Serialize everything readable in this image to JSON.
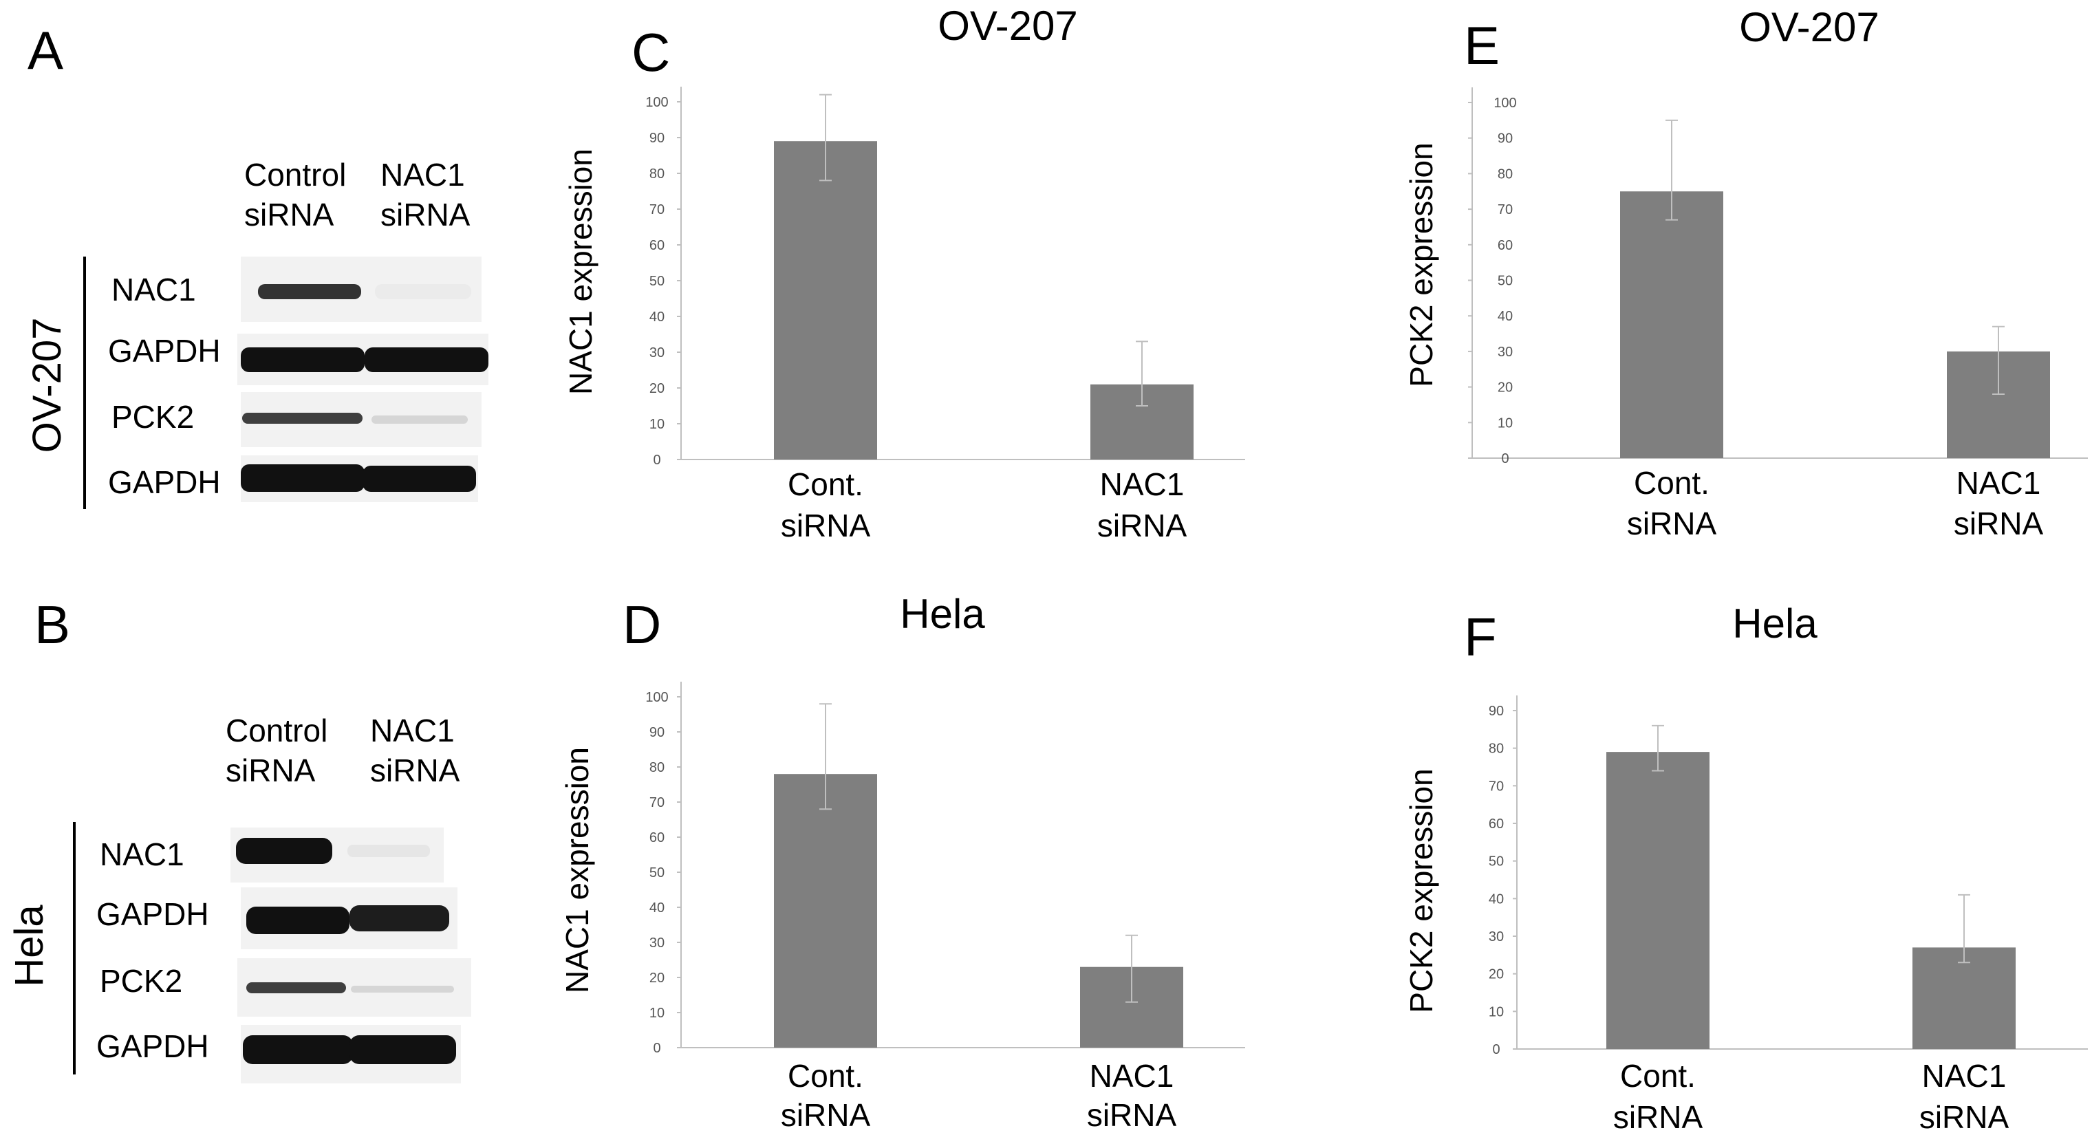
{
  "panels": {
    "A": "A",
    "B": "B",
    "C": "C",
    "D": "D",
    "E": "E",
    "F": "F"
  },
  "western_blots": [
    {
      "cell_line": "OV-207",
      "lanes": [
        {
          "line1": "Control",
          "line2": "siRNA"
        },
        {
          "line1": "NAC1",
          "line2": "siRNA"
        }
      ],
      "rows": [
        "NAC1",
        "GAPDH",
        "PCK2",
        "GAPDH"
      ],
      "band_intensity": [
        [
          0.85,
          0.03
        ],
        [
          1.0,
          1.0
        ],
        [
          0.8,
          0.12
        ],
        [
          1.0,
          1.0
        ]
      ]
    },
    {
      "cell_line": "Hela",
      "lanes": [
        {
          "line1": "Control",
          "line2": "siRNA"
        },
        {
          "line1": "NAC1",
          "line2": "siRNA"
        }
      ],
      "rows": [
        "NAC1",
        "GAPDH",
        "PCK2",
        "GAPDH"
      ],
      "band_intensity": [
        [
          1.0,
          0.05
        ],
        [
          1.0,
          0.95
        ],
        [
          0.8,
          0.12
        ],
        [
          1.0,
          1.0
        ]
      ]
    }
  ],
  "colors": {
    "bar": "#7f7f7f",
    "axis": "#bfbfbf",
    "band": "#111111",
    "blot_bg": "#f2f2f2"
  },
  "chart_data": [
    {
      "panel": "C",
      "type": "bar",
      "title": "OV-207",
      "ylabel": "NAC1 expression",
      "categories": [
        {
          "line1": "Cont.",
          "line2": "siRNA"
        },
        {
          "line1": "NAC1",
          "line2": "siRNA"
        }
      ],
      "values": [
        89,
        21
      ],
      "errors": [
        {
          "low": 78,
          "high": 102
        },
        {
          "low": 15,
          "high": 33
        }
      ],
      "ylim": [
        0,
        100
      ],
      "yticks": [
        0,
        10,
        20,
        30,
        40,
        50,
        60,
        70,
        80,
        90,
        100
      ],
      "grid": false
    },
    {
      "panel": "D",
      "type": "bar",
      "title": "Hela",
      "ylabel": "NAC1 expression",
      "categories": [
        {
          "line1": "Cont.",
          "line2": "siRNA"
        },
        {
          "line1": "NAC1",
          "line2": "siRNA"
        }
      ],
      "values": [
        78,
        23
      ],
      "errors": [
        {
          "low": 68,
          "high": 98
        },
        {
          "low": 13,
          "high": 32
        }
      ],
      "ylim": [
        0,
        100
      ],
      "yticks": [
        0,
        10,
        20,
        30,
        40,
        50,
        60,
        70,
        80,
        90,
        100
      ],
      "grid": false
    },
    {
      "panel": "E",
      "type": "bar",
      "title": "OV-207",
      "ylabel": "PCK2 expression",
      "categories": [
        {
          "line1": "Cont.",
          "line2": "siRNA"
        },
        {
          "line1": "NAC1",
          "line2": "siRNA"
        }
      ],
      "values": [
        75,
        30
      ],
      "errors": [
        {
          "low": 67,
          "high": 95
        },
        {
          "low": 18,
          "high": 37
        }
      ],
      "ylim": [
        0,
        100
      ],
      "yticks": [
        0,
        10,
        20,
        30,
        40,
        50,
        60,
        70,
        80,
        90,
        100
      ],
      "grid": false
    },
    {
      "panel": "F",
      "type": "bar",
      "title": "Hela",
      "ylabel": "PCK2 expression",
      "categories": [
        {
          "line1": "Cont.",
          "line2": "siRNA"
        },
        {
          "line1": "NAC1",
          "line2": "siRNA"
        }
      ],
      "values": [
        79,
        27
      ],
      "errors": [
        {
          "low": 74,
          "high": 86
        },
        {
          "low": 23,
          "high": 41
        }
      ],
      "ylim": [
        0,
        90
      ],
      "yticks": [
        0,
        10,
        20,
        30,
        40,
        50,
        60,
        70,
        80,
        90
      ],
      "grid": false
    }
  ]
}
